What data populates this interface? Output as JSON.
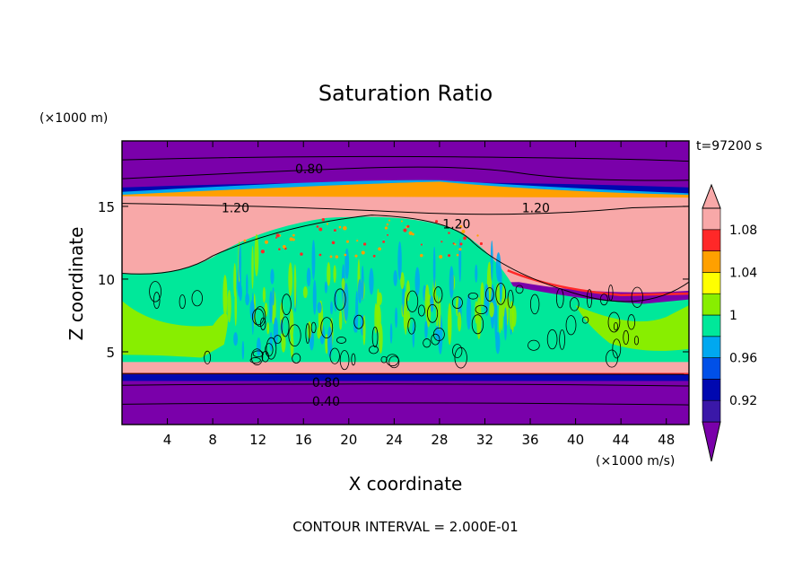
{
  "chart_data": {
    "type": "heatmap",
    "title": "Saturation Ratio",
    "xlabel": "X coordinate",
    "ylabel": "Z coordinate",
    "x_unit": "(×1000 m/s)",
    "y_unit": "(×1000 m)",
    "time_label": "t=97200 s",
    "footer": "CONTOUR INTERVAL = 2.000E-01",
    "xlim": [
      0,
      50
    ],
    "ylim": [
      0,
      19.5
    ],
    "xticks": [
      4,
      8,
      12,
      16,
      20,
      24,
      28,
      32,
      36,
      40,
      44,
      48
    ],
    "yticks": [
      5,
      10,
      15
    ],
    "colorbar": {
      "levels": [
        0.9,
        0.92,
        0.94,
        0.96,
        0.98,
        1.0,
        1.02,
        1.04,
        1.06,
        1.08,
        1.1
      ],
      "tick_labels": [
        "0.92",
        "0.96",
        "1",
        "1.04",
        "1.08"
      ],
      "tick_values": [
        0.92,
        0.96,
        1.0,
        1.04,
        1.08
      ],
      "colors": [
        "#7a00aa",
        "#3a18a8",
        "#0008b0",
        "#0050e8",
        "#00a8f0",
        "#00e89a",
        "#88ee00",
        "#ffff00",
        "#ffa000",
        "#ff2828",
        "#f8a8a8"
      ]
    },
    "contour_labels": [
      {
        "text": "0.80",
        "x": 16.5,
        "y": 17.6
      },
      {
        "text": "1.20",
        "x": 10,
        "y": 14.9
      },
      {
        "text": "1.20",
        "x": 29.5,
        "y": 13.8
      },
      {
        "text": "1.20",
        "x": 36.5,
        "y": 14.9
      },
      {
        "text": "0.80",
        "x": 18,
        "y": 2.9
      },
      {
        "text": "0.40",
        "x": 18,
        "y": 1.6
      }
    ]
  }
}
